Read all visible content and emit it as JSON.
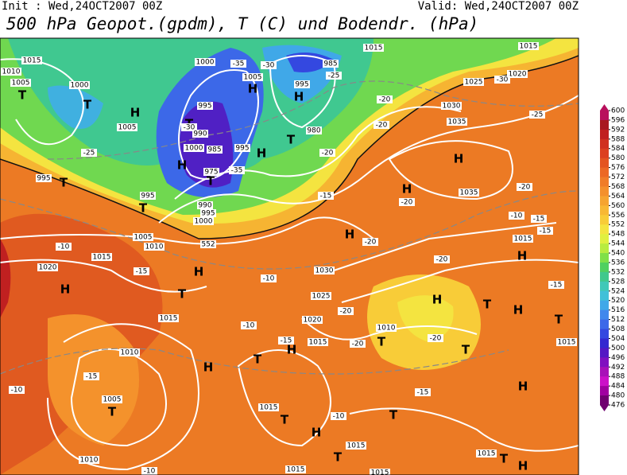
{
  "header": {
    "init": "Init : Wed,24OCT2007 00Z",
    "valid": "Valid: Wed,24OCT2007 00Z",
    "title": "500 hPa Geopot.(gpdm), T (C) und Bodendr. (hPa)"
  },
  "colorbar": {
    "levels": [
      600,
      596,
      592,
      588,
      584,
      580,
      576,
      572,
      568,
      564,
      560,
      556,
      552,
      548,
      544,
      540,
      536,
      532,
      528,
      524,
      520,
      516,
      512,
      508,
      504,
      500,
      496,
      492,
      488,
      484,
      480,
      476
    ],
    "colors": [
      "#b8105c",
      "#a81820",
      "#c02020",
      "#d03020",
      "#dc4020",
      "#e45420",
      "#ec6824",
      "#f07c28",
      "#f4902c",
      "#f6a430",
      "#f8b834",
      "#f8cc38",
      "#f4e440",
      "#e0f040",
      "#b8ec40",
      "#80e048",
      "#50d060",
      "#40c88c",
      "#40c8b8",
      "#40c0d8",
      "#40a8e8",
      "#4088ec",
      "#3c68e8",
      "#3448e0",
      "#3428d0",
      "#5418c4",
      "#8010c0",
      "#a810b8",
      "#cc10c8",
      "#a000a0",
      "#700070"
    ]
  },
  "map_labels": [
    "1015",
    "1010",
    "1005",
    "1000",
    "T",
    "T",
    "H",
    "1005",
    "-25",
    "T",
    "995",
    "995",
    "T",
    "1005",
    "1010",
    "1015",
    "-10",
    "1020",
    "H",
    "-15",
    "H",
    "T",
    "1000",
    "-35",
    "-30",
    "985",
    "1005",
    "H",
    "995",
    "H",
    "995",
    "T",
    "-30",
    "990",
    "980",
    "T",
    "1000",
    "985",
    "995",
    "H",
    "H",
    "975",
    "-35",
    "T",
    "990",
    "995",
    "1000",
    "552",
    "1015",
    "1015",
    "1020",
    "-30",
    "1025",
    "-25",
    "1030",
    "-20",
    "-25",
    "1035",
    "-20",
    "H",
    "-20",
    "-20",
    "1035",
    "-20",
    "-15",
    "H",
    "-10",
    "-15",
    "-15",
    "1015",
    "H",
    "-20",
    "1030",
    "-20",
    "H",
    "-10",
    "1025",
    "H",
    "-20",
    "T",
    "H",
    "-15",
    "T",
    "1020",
    "1015",
    "-10",
    "1010",
    "T",
    "-20",
    "-20",
    "1015",
    "-15",
    "H",
    "T",
    "1010",
    "H",
    "T",
    "1015",
    "-15",
    "-10",
    "1005",
    "T",
    "H",
    "-15",
    "1015",
    "T",
    "T",
    "-10",
    "H",
    "1015",
    "T",
    "1010",
    "1015",
    "1015",
    "T",
    "H",
    "-10",
    "1015"
  ]
}
